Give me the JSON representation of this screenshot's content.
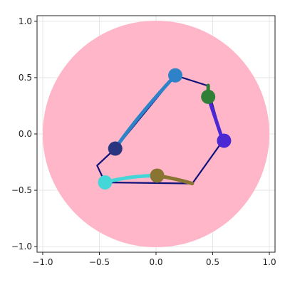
{
  "chart_data": {
    "type": "line",
    "title": "",
    "xlabel": "",
    "ylabel": "",
    "xlim": [
      -1.05,
      1.05
    ],
    "ylim": [
      -1.05,
      1.05
    ],
    "grid": true,
    "x_ticks": [
      -1.0,
      -0.5,
      0.0,
      0.5,
      1.0
    ],
    "x_tick_labels": [
      "−1.0",
      "−0.5",
      "0.0",
      "0.5",
      "1.0"
    ],
    "y_ticks": [
      -1.0,
      -0.5,
      0.0,
      0.5,
      1.0
    ],
    "y_tick_labels": [
      "−1.0",
      "−0.5",
      "0.0",
      "0.5",
      "1.0"
    ],
    "disk": {
      "center": [
        0,
        0
      ],
      "radius": 1.0,
      "color": "#ffb6c8"
    },
    "outline": {
      "color": "#10107a",
      "points": [
        [
          0.17,
          0.52
        ],
        [
          0.45,
          0.43
        ],
        [
          0.59,
          -0.06
        ],
        [
          0.32,
          -0.44
        ],
        [
          -0.45,
          -0.43
        ],
        [
          -0.52,
          -0.28
        ],
        [
          -0.36,
          -0.13
        ]
      ]
    },
    "series": [
      {
        "color": "#2d82c8",
        "width": 5,
        "points": [
          [
            -0.36,
            -0.13
          ],
          [
            -0.17,
            0.15
          ],
          [
            0.17,
            0.52
          ]
        ]
      },
      {
        "color": "#2f8036",
        "width": 5,
        "points": [
          [
            0.46,
            0.43
          ],
          [
            0.46,
            0.33
          ]
        ]
      },
      {
        "color": "#4c28d4",
        "width": 5,
        "points": [
          [
            0.46,
            0.33
          ],
          [
            0.52,
            0.15
          ],
          [
            0.59,
            -0.06
          ]
        ]
      },
      {
        "color": "#8a7431",
        "width": 5,
        "points": [
          [
            0.0,
            -0.37
          ],
          [
            0.15,
            -0.39
          ],
          [
            0.32,
            -0.44
          ]
        ]
      },
      {
        "color": "#45d6d8",
        "width": 5,
        "points": [
          [
            -0.45,
            -0.43
          ],
          [
            -0.22,
            -0.37
          ],
          [
            0.0,
            -0.37
          ]
        ]
      }
    ],
    "markers": [
      {
        "x": 0.17,
        "y": 0.52,
        "color": "#2d82c8"
      },
      {
        "x": 0.46,
        "y": 0.33,
        "color": "#2f8036"
      },
      {
        "x": 0.6,
        "y": -0.06,
        "color": "#4c28d4"
      },
      {
        "x": -0.36,
        "y": -0.13,
        "color": "#2a3580"
      },
      {
        "x": 0.01,
        "y": -0.37,
        "color": "#8a7431"
      },
      {
        "x": -0.45,
        "y": -0.43,
        "color": "#45d6d8"
      }
    ]
  }
}
